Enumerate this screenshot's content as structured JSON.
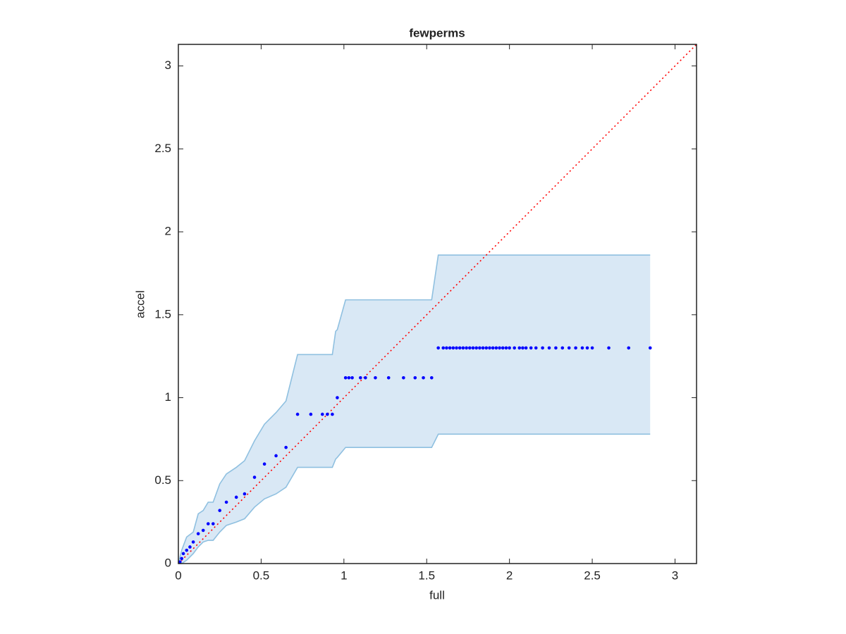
{
  "chart_data": {
    "type": "scatter",
    "title": "fewperms",
    "xlabel": "full",
    "ylabel": "accel",
    "xlim": [
      0,
      3.13
    ],
    "ylim": [
      0,
      3.13
    ],
    "xticks": [
      0,
      0.5,
      1,
      1.5,
      2,
      2.5,
      3
    ],
    "yticks": [
      0,
      0.5,
      1,
      1.5,
      2,
      2.5,
      3
    ],
    "points": {
      "color": "#0000ff",
      "x": [
        0.01,
        0.02,
        0.03,
        0.05,
        0.07,
        0.09,
        0.12,
        0.15,
        0.18,
        0.21,
        0.25,
        0.29,
        0.35,
        0.4,
        0.46,
        0.52,
        0.59,
        0.65,
        0.72,
        0.8,
        0.87,
        0.9,
        0.93,
        0.96,
        1.01,
        1.03,
        1.05,
        1.1,
        1.13,
        1.19,
        1.27,
        1.36,
        1.43,
        1.48,
        1.53,
        1.57,
        1.6,
        1.62,
        1.64,
        1.66,
        1.68,
        1.7,
        1.72,
        1.74,
        1.76,
        1.78,
        1.8,
        1.82,
        1.84,
        1.86,
        1.88,
        1.9,
        1.92,
        1.94,
        1.96,
        1.98,
        2.0,
        2.03,
        2.06,
        2.08,
        2.1,
        2.13,
        2.16,
        2.2,
        2.24,
        2.28,
        2.32,
        2.36,
        2.4,
        2.44,
        2.47,
        2.5,
        2.6,
        2.72,
        2.85
      ],
      "y": [
        0.01,
        0.03,
        0.06,
        0.08,
        0.1,
        0.13,
        0.18,
        0.2,
        0.24,
        0.24,
        0.32,
        0.37,
        0.4,
        0.42,
        0.52,
        0.6,
        0.65,
        0.7,
        0.9,
        0.9,
        0.9,
        0.9,
        0.9,
        1.0,
        1.12,
        1.12,
        1.12,
        1.12,
        1.12,
        1.12,
        1.12,
        1.12,
        1.12,
        1.12,
        1.12,
        1.3,
        1.3,
        1.3,
        1.3,
        1.3,
        1.3,
        1.3,
        1.3,
        1.3,
        1.3,
        1.3,
        1.3,
        1.3,
        1.3,
        1.3,
        1.3,
        1.3,
        1.3,
        1.3,
        1.3,
        1.3,
        1.3,
        1.3,
        1.3,
        1.3,
        1.3,
        1.3,
        1.3,
        1.3,
        1.3,
        1.3,
        1.3,
        1.3,
        1.3,
        1.3,
        1.3,
        1.3,
        1.3,
        1.3,
        1.3
      ]
    },
    "band": {
      "fill": "#d9e8f5",
      "edge": "#8fc0e0",
      "x": [
        0,
        0.02,
        0.05,
        0.09,
        0.12,
        0.15,
        0.18,
        0.21,
        0.25,
        0.29,
        0.35,
        0.4,
        0.46,
        0.52,
        0.59,
        0.65,
        0.72,
        0.93,
        0.95,
        0.96,
        1.01,
        1.53,
        1.57,
        2.85
      ],
      "upper": [
        0,
        0.08,
        0.16,
        0.19,
        0.3,
        0.32,
        0.37,
        0.37,
        0.48,
        0.54,
        0.58,
        0.62,
        0.74,
        0.84,
        0.91,
        0.98,
        1.26,
        1.26,
        1.4,
        1.41,
        1.59,
        1.59,
        1.86,
        1.86
      ],
      "lower": [
        0,
        0.0,
        0.02,
        0.06,
        0.1,
        0.13,
        0.14,
        0.14,
        0.19,
        0.23,
        0.25,
        0.27,
        0.34,
        0.39,
        0.42,
        0.46,
        0.58,
        0.58,
        0.63,
        0.64,
        0.7,
        0.7,
        0.78,
        0.78
      ]
    },
    "reference_line": {
      "color": "#ff0000",
      "x": [
        0,
        3.13
      ],
      "y": [
        0,
        3.13
      ]
    }
  }
}
